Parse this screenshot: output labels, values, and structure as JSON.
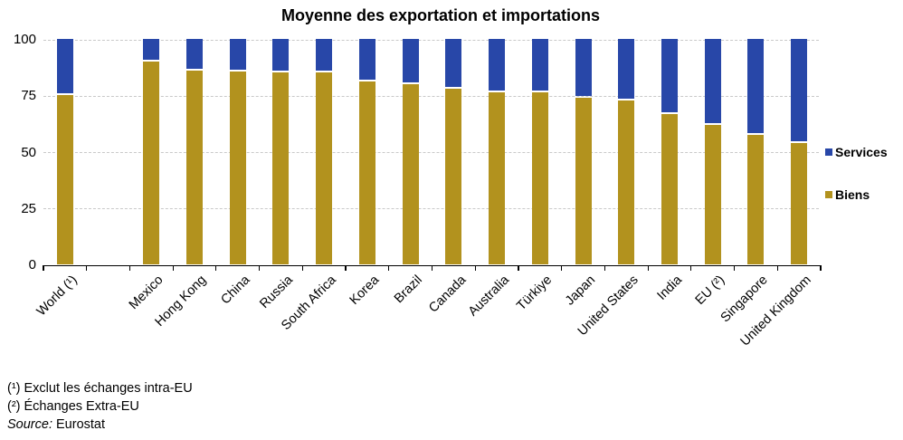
{
  "title": "Moyenne des exportation et importations",
  "footnotes": {
    "note1": "(¹) Exclut les échanges intra-EU",
    "note2": "(²) Échanges Extra-EU",
    "source_label": "Source:",
    "source_value": "Eurostat"
  },
  "chart_data": {
    "type": "bar",
    "subtype": "stacked-100-percent",
    "title": "Moyenne des exportation et importations",
    "categories": [
      "World (¹)",
      "Mexico",
      "Hong Kong",
      "China",
      "Russia",
      "South Africa",
      "Korea",
      "Brazil",
      "Canada",
      "Australia",
      "Türkiye",
      "Japan",
      "United States",
      "India",
      "EU (²)",
      "Singapore",
      "United Kingdom"
    ],
    "series": [
      {
        "name": "Services",
        "color": "#2847A8",
        "values": [
          25,
          10,
          14,
          14.5,
          15,
          15,
          19,
          20,
          22,
          23.5,
          23.5,
          26,
          27.5,
          33.5,
          38,
          42.5,
          46
        ]
      },
      {
        "name": "Biens",
        "color": "#B2921E",
        "values": [
          75,
          90,
          86,
          85.5,
          85,
          85,
          81,
          80,
          78,
          76.5,
          76.5,
          74,
          72.5,
          66.5,
          62,
          57.5,
          54
        ]
      }
    ],
    "ylim": [
      0,
      100
    ],
    "y_ticks": [
      0,
      25,
      50,
      75,
      100
    ],
    "grid": "horizontal-dashed",
    "gridline_color": "#C9C9C9",
    "legend_position": "right",
    "legend_order": [
      "Services",
      "Biens"
    ],
    "gap_after_first_category": true,
    "x_labels_rotation_deg": 45
  }
}
